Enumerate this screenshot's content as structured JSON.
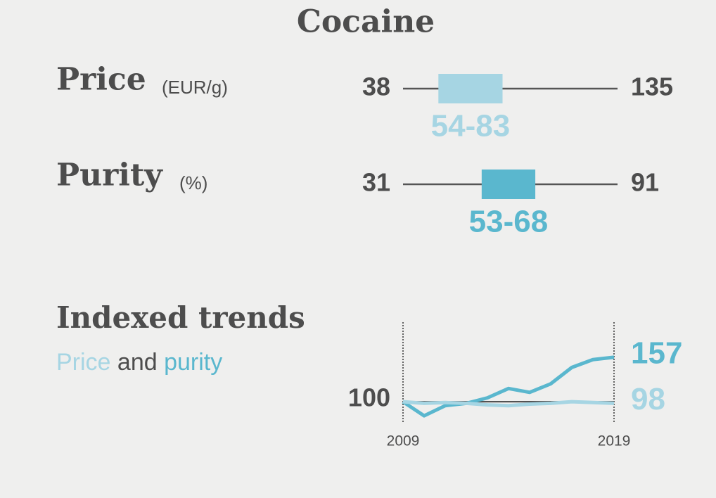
{
  "title": "Cocaine",
  "ranges": [
    {
      "label": "Price",
      "unit": "(EUR/g)",
      "min": 38,
      "max": 135,
      "low": 54,
      "high": 83,
      "range_label": "54-83",
      "color": "#a6d5e3"
    },
    {
      "label": "Purity",
      "unit": "(%)",
      "min": 31,
      "max": 91,
      "low": 53,
      "high": 68,
      "range_label": "53-68",
      "color": "#5ab7ce"
    }
  ],
  "chart_data": {
    "type": "line",
    "title": "Indexed trends",
    "subtitle_joiner": "and",
    "x": [
      2009,
      2010,
      2011,
      2012,
      2013,
      2014,
      2015,
      2016,
      2017,
      2018,
      2019
    ],
    "series": [
      {
        "name": "Price",
        "color": "#a6d5e3",
        "values": [
          100,
          98,
          99,
          98,
          96,
          95,
          97,
          98,
          100,
          99,
          98
        ]
      },
      {
        "name": "purity",
        "color": "#5ab7ce",
        "values": [
          100,
          82,
          95,
          98,
          105,
          117,
          112,
          123,
          144,
          154,
          157
        ]
      }
    ],
    "xlim": [
      2009,
      2019
    ],
    "xticks": [
      2009,
      2019
    ],
    "ylim": [
      74,
      202
    ],
    "yticks": [
      100
    ]
  }
}
